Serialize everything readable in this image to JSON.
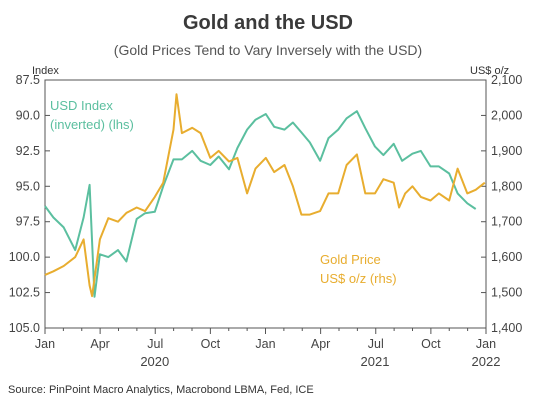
{
  "chart_data": {
    "type": "line",
    "title": "Gold and the USD",
    "subtitle": "(Gold Prices Tend to Vary Inversely with the USD)",
    "left_axis_unit": "Index",
    "right_axis_unit": "US$ o/z",
    "left_axis_inverted": true,
    "left_ylim": [
      105.0,
      87.5
    ],
    "right_ylim": [
      1400,
      2100
    ],
    "left_ticks": [
      "87.5",
      "90.0",
      "92.5",
      "95.0",
      "97.5",
      "100.0",
      "102.5",
      "105.0"
    ],
    "right_ticks": [
      "2,100",
      "2,000",
      "1,900",
      "1,800",
      "1,700",
      "1,600",
      "1,500",
      "1,400"
    ],
    "x_month_labels": [
      "Jan",
      "Apr",
      "Jul",
      "Oct",
      "Jan",
      "Apr",
      "Jul",
      "Oct",
      "Jan"
    ],
    "x_year_labels": [
      "2020",
      "2021",
      "2022"
    ],
    "x_start": "2020-01",
    "x_end": "2022-01",
    "grid": false,
    "colors": {
      "usd": "#5bbf9f",
      "gold": "#e8ad2f",
      "text": "#333333"
    },
    "series": [
      {
        "name": "USD Index (inverted) (lhs)",
        "axis": "left",
        "x": [
          "2020-01-01",
          "2020-01-15",
          "2020-02-01",
          "2020-02-20",
          "2020-03-05",
          "2020-03-15",
          "2020-03-23",
          "2020-04-01",
          "2020-04-15",
          "2020-05-01",
          "2020-05-15",
          "2020-06-01",
          "2020-06-15",
          "2020-07-01",
          "2020-07-15",
          "2020-08-01",
          "2020-08-15",
          "2020-09-01",
          "2020-09-15",
          "2020-10-01",
          "2020-10-15",
          "2020-11-01",
          "2020-11-15",
          "2020-12-01",
          "2020-12-15",
          "2021-01-01",
          "2021-01-15",
          "2021-02-01",
          "2021-02-15",
          "2021-03-01",
          "2021-03-15",
          "2021-04-01",
          "2021-04-15",
          "2021-05-01",
          "2021-05-15",
          "2021-06-01",
          "2021-06-15",
          "2021-07-01",
          "2021-07-15",
          "2021-08-01",
          "2021-08-15",
          "2021-09-01",
          "2021-09-15",
          "2021-10-01",
          "2021-10-15",
          "2021-11-01",
          "2021-11-15",
          "2021-12-01",
          "2021-12-15"
        ],
        "values": [
          96.4,
          97.2,
          97.9,
          99.5,
          97.2,
          94.9,
          102.8,
          99.8,
          100.0,
          99.5,
          100.3,
          97.3,
          96.9,
          96.8,
          95.0,
          93.1,
          93.1,
          92.5,
          93.2,
          93.5,
          92.9,
          93.8,
          92.3,
          91.0,
          90.3,
          89.9,
          90.8,
          91.0,
          90.5,
          91.2,
          91.9,
          93.2,
          91.6,
          91.0,
          90.2,
          89.7,
          90.9,
          92.2,
          92.8,
          92.0,
          93.2,
          92.7,
          92.5,
          93.6,
          93.6,
          94.1,
          95.5,
          96.2,
          96.6
        ]
      },
      {
        "name": "Gold Price US$ o/z (rhs)",
        "axis": "right",
        "x": [
          "2020-01-01",
          "2020-01-15",
          "2020-02-01",
          "2020-02-20",
          "2020-03-05",
          "2020-03-15",
          "2020-03-19",
          "2020-04-01",
          "2020-04-15",
          "2020-05-01",
          "2020-05-15",
          "2020-06-01",
          "2020-06-15",
          "2020-07-01",
          "2020-07-15",
          "2020-08-01",
          "2020-08-06",
          "2020-08-15",
          "2020-09-01",
          "2020-09-15",
          "2020-10-01",
          "2020-10-15",
          "2020-11-01",
          "2020-11-15",
          "2020-12-01",
          "2020-12-15",
          "2021-01-01",
          "2021-01-15",
          "2021-02-01",
          "2021-02-15",
          "2021-03-01",
          "2021-03-15",
          "2021-04-01",
          "2021-04-15",
          "2021-05-01",
          "2021-05-15",
          "2021-06-01",
          "2021-06-15",
          "2021-07-01",
          "2021-07-15",
          "2021-08-01",
          "2021-08-10",
          "2021-08-20",
          "2021-09-01",
          "2021-09-15",
          "2021-10-01",
          "2021-10-15",
          "2021-11-01",
          "2021-11-15",
          "2021-12-01",
          "2021-12-15",
          "2021-12-30"
        ],
        "values": [
          1550,
          1560,
          1575,
          1600,
          1650,
          1520,
          1490,
          1650,
          1710,
          1700,
          1725,
          1740,
          1730,
          1770,
          1810,
          1960,
          2060,
          1950,
          1965,
          1950,
          1880,
          1900,
          1870,
          1880,
          1780,
          1850,
          1880,
          1840,
          1860,
          1800,
          1720,
          1720,
          1730,
          1780,
          1780,
          1860,
          1890,
          1780,
          1780,
          1820,
          1810,
          1740,
          1780,
          1800,
          1770,
          1760,
          1780,
          1760,
          1850,
          1780,
          1790,
          1810
        ]
      }
    ],
    "annotations": [
      {
        "series": "usd",
        "lines": [
          "USD Index",
          "(inverted) (lhs)"
        ]
      },
      {
        "series": "gold",
        "lines": [
          "Gold Price",
          "US$ o/z (rhs)"
        ]
      }
    ],
    "source": "Source: PinPoint Macro Analytics, Macrobond LBMA, Fed, ICE"
  }
}
